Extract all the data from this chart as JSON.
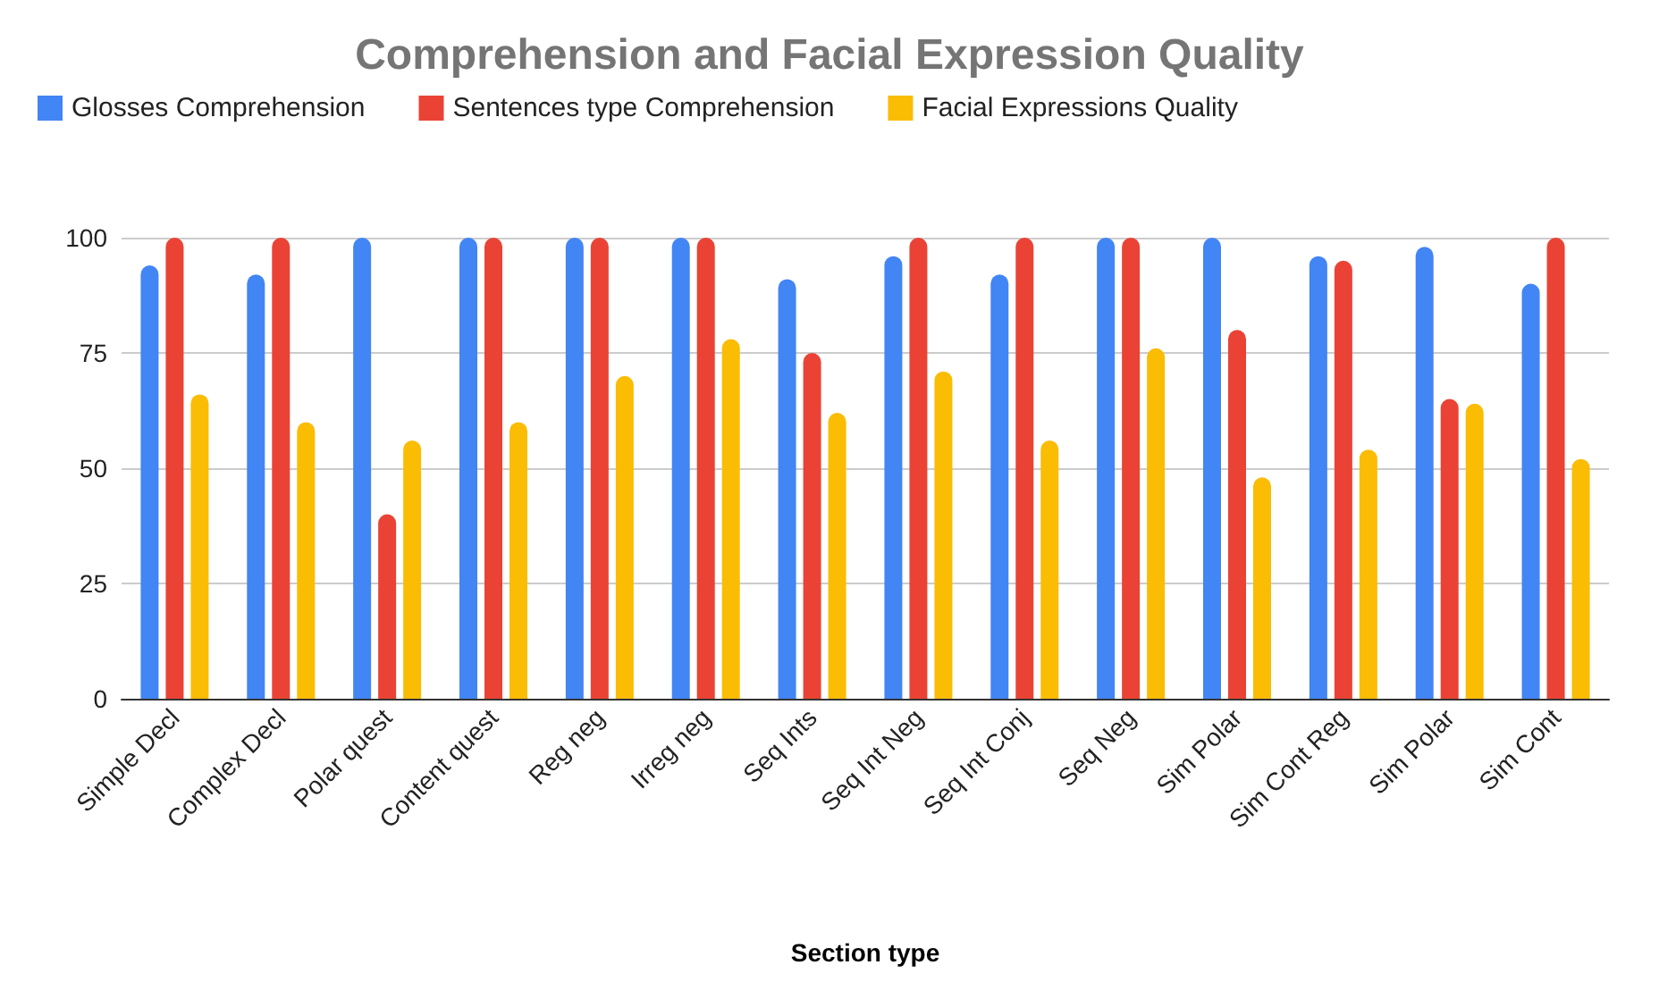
{
  "chart_data": {
    "type": "bar",
    "title": "Comprehension and Facial Expression Quality",
    "xlabel": "Section type",
    "categories": [
      "Simple Decl",
      "Complex Decl",
      "Polar quest",
      "Content quest",
      "Reg neg",
      "Irreg neg",
      "Seq Ints",
      "Seq Int Neg",
      "Seq Int Conj",
      "Seq Neg",
      "Sim Polar",
      "Sim Cont Reg",
      "Sim Polar",
      "Sim Cont"
    ],
    "series": [
      {
        "name": "Glosses Comprehension",
        "color": "#4285f4",
        "values": [
          94,
          92,
          100,
          100,
          100,
          100,
          91,
          96,
          92,
          100,
          100,
          96,
          98,
          90
        ]
      },
      {
        "name": "Sentences type Comprehension",
        "color": "#ea4335",
        "values": [
          100,
          100,
          40,
          100,
          100,
          100,
          75,
          100,
          100,
          100,
          80,
          95,
          65,
          100
        ]
      },
      {
        "name": "Facial Expressions Quality",
        "color": "#fbbc04",
        "values": [
          66,
          60,
          56,
          60,
          70,
          78,
          62,
          71,
          56,
          76,
          48,
          54,
          64,
          52
        ]
      }
    ],
    "ylim": [
      0,
      100
    ],
    "yticks": [
      0,
      25,
      50,
      75,
      100
    ],
    "grid": "y",
    "legend": "top"
  }
}
